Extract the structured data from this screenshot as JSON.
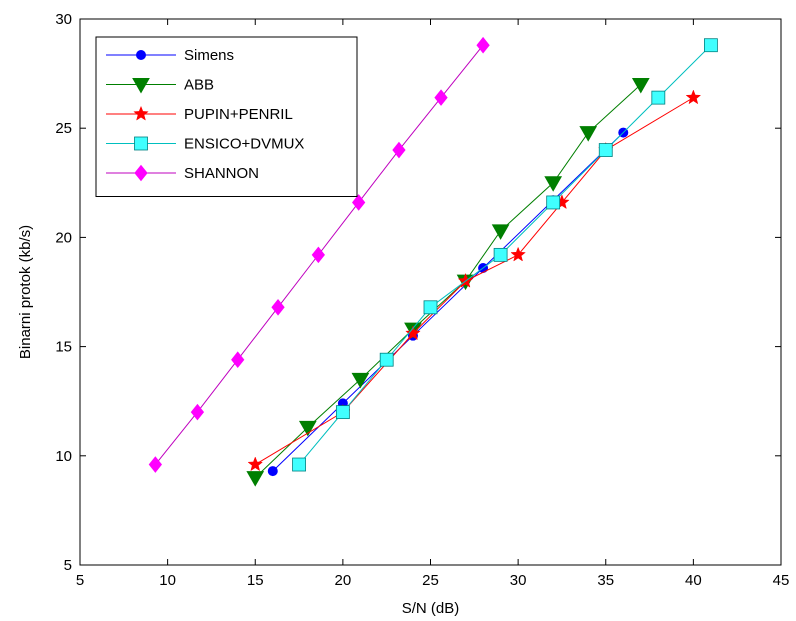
{
  "chart_data": {
    "type": "line",
    "title": "",
    "xlabel": "S/N (dB)",
    "ylabel": "Binarni protok (kb/s)",
    "xlim": [
      5,
      45
    ],
    "ylim": [
      5,
      30
    ],
    "xticks": [
      5,
      10,
      15,
      20,
      25,
      30,
      35,
      40,
      45
    ],
    "yticks": [
      5,
      10,
      15,
      20,
      25,
      30
    ],
    "grid": false,
    "legend_position": "top-left",
    "series": [
      {
        "name": "Simens",
        "color": "#0000ff",
        "marker": "circle",
        "x": [
          16,
          20,
          24,
          28,
          32,
          36
        ],
        "y": [
          9.3,
          12.4,
          15.5,
          18.6,
          21.7,
          24.8
        ]
      },
      {
        "name": "ABB",
        "color": "#007f00",
        "marker": "triangle-down",
        "x": [
          15,
          18,
          21,
          24,
          27,
          29,
          32,
          34,
          37
        ],
        "y": [
          9.0,
          11.3,
          13.5,
          15.8,
          18.0,
          20.3,
          22.5,
          24.8,
          27.0
        ]
      },
      {
        "name": "PUPIN+PENRIL",
        "color": "#ff0000",
        "marker": "star",
        "x": [
          15,
          20,
          24,
          27,
          30,
          32.5,
          35,
          40
        ],
        "y": [
          9.6,
          12.0,
          15.6,
          18.0,
          19.2,
          21.6,
          24.0,
          26.4
        ]
      },
      {
        "name": "ENSICO+DVMUX",
        "color": "#00bfbf",
        "marker": "square",
        "x": [
          17.5,
          20,
          22.5,
          25,
          29,
          32,
          35,
          38,
          41
        ],
        "y": [
          9.6,
          12.0,
          14.4,
          16.8,
          19.2,
          21.6,
          24.0,
          26.4,
          28.8
        ]
      },
      {
        "name": "SHANNON",
        "color": "#bf00bf",
        "marker": "diamond",
        "x": [
          9.3,
          11.7,
          14.0,
          16.3,
          18.6,
          20.9,
          23.2,
          25.6,
          28.0
        ],
        "y": [
          9.6,
          12.0,
          14.4,
          16.8,
          19.2,
          21.6,
          24.0,
          26.4,
          28.8
        ]
      }
    ]
  }
}
